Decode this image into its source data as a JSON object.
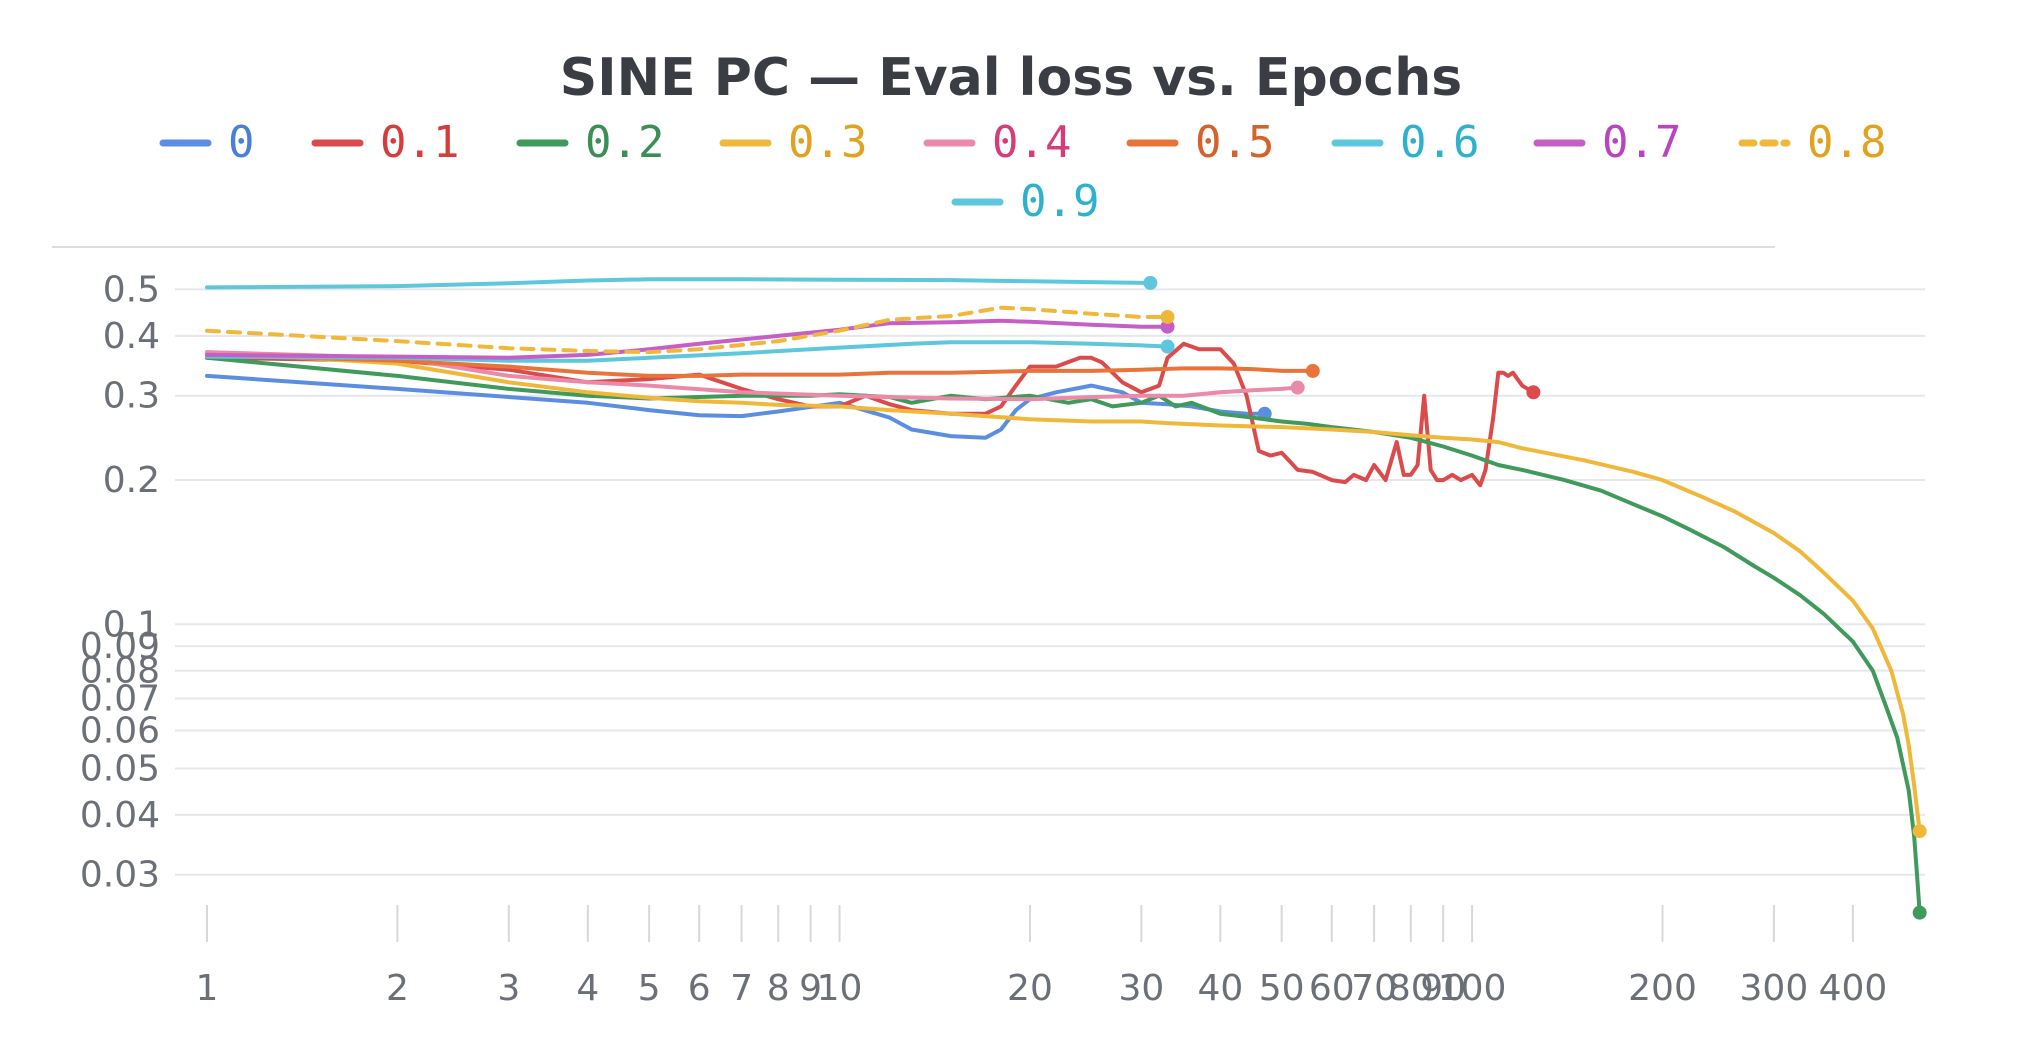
{
  "chart_data": {
    "type": "line",
    "title": "SINE PC — Eval loss vs. Epochs",
    "xlabel": "",
    "ylabel": "",
    "xscale": "log",
    "yscale": "log",
    "xlim": [
      1,
      520
    ],
    "ylim": [
      0.023,
      0.59
    ],
    "grid": "horizontal",
    "legend_position": "top",
    "x_ticks": [
      {
        "value": 1,
        "label": "1"
      },
      {
        "value": 2,
        "label": "2"
      },
      {
        "value": 3,
        "label": "3"
      },
      {
        "value": 4,
        "label": "4"
      },
      {
        "value": 5,
        "label": "5"
      },
      {
        "value": 6,
        "label": "6"
      },
      {
        "value": 7,
        "label": "7"
      },
      {
        "value": 8,
        "label": "8"
      },
      {
        "value": 9,
        "label": "9"
      },
      {
        "value": 10,
        "label": "10"
      },
      {
        "value": 20,
        "label": "20"
      },
      {
        "value": 30,
        "label": "30"
      },
      {
        "value": 40,
        "label": "40"
      },
      {
        "value": 50,
        "label": "50"
      },
      {
        "value": 60,
        "label": "60"
      },
      {
        "value": 70,
        "label": "70"
      },
      {
        "value": 80,
        "label": "80"
      },
      {
        "value": 90,
        "label": "90"
      },
      {
        "value": 100,
        "label": "100"
      },
      {
        "value": 200,
        "label": "200"
      },
      {
        "value": 300,
        "label": "300"
      },
      {
        "value": 400,
        "label": "400"
      }
    ],
    "y_ticks": [
      {
        "value": 0.5,
        "label": "0.5"
      },
      {
        "value": 0.4,
        "label": "0.4"
      },
      {
        "value": 0.3,
        "label": "0.3"
      },
      {
        "value": 0.2,
        "label": "0.2"
      },
      {
        "value": 0.1,
        "label": "0.1"
      },
      {
        "value": 0.09,
        "label": "0.09"
      },
      {
        "value": 0.08,
        "label": "0.08"
      },
      {
        "value": 0.07,
        "label": "0.07"
      },
      {
        "value": 0.06,
        "label": "0.06"
      },
      {
        "value": 0.05,
        "label": "0.05"
      },
      {
        "value": 0.04,
        "label": "0.04"
      },
      {
        "value": 0.03,
        "label": "0.03"
      }
    ],
    "series": [
      {
        "name": "0",
        "color": "#5b8de0",
        "text_color": "#4a7fd6",
        "dashed": false,
        "points": [
          [
            1,
            0.33
          ],
          [
            2,
            0.31
          ],
          [
            4,
            0.29
          ],
          [
            5,
            0.28
          ],
          [
            6,
            0.273
          ],
          [
            7,
            0.272
          ],
          [
            8,
            0.278
          ],
          [
            10,
            0.29
          ],
          [
            12,
            0.27
          ],
          [
            13,
            0.255
          ],
          [
            15,
            0.247
          ],
          [
            17,
            0.245
          ],
          [
            18,
            0.255
          ],
          [
            19,
            0.28
          ],
          [
            20,
            0.295
          ],
          [
            22,
            0.305
          ],
          [
            25,
            0.315
          ],
          [
            28,
            0.305
          ],
          [
            30,
            0.29
          ],
          [
            33,
            0.288
          ],
          [
            36,
            0.285
          ],
          [
            40,
            0.278
          ],
          [
            44,
            0.275
          ],
          [
            47,
            0.275
          ]
        ]
      },
      {
        "name": "0.1",
        "color": "#dc4b4b",
        "text_color": "#d63c3c",
        "dashed": false,
        "points": [
          [
            1,
            0.36
          ],
          [
            2,
            0.355
          ],
          [
            3,
            0.34
          ],
          [
            4,
            0.32
          ],
          [
            5,
            0.325
          ],
          [
            6,
            0.332
          ],
          [
            7,
            0.31
          ],
          [
            8,
            0.295
          ],
          [
            9,
            0.285
          ],
          [
            10,
            0.285
          ],
          [
            11,
            0.3
          ],
          [
            12,
            0.288
          ],
          [
            13,
            0.28
          ],
          [
            15,
            0.275
          ],
          [
            17,
            0.275
          ],
          [
            18,
            0.285
          ],
          [
            19,
            0.315
          ],
          [
            20,
            0.345
          ],
          [
            22,
            0.345
          ],
          [
            24,
            0.36
          ],
          [
            25,
            0.36
          ],
          [
            26,
            0.352
          ],
          [
            28,
            0.32
          ],
          [
            30,
            0.305
          ],
          [
            32,
            0.315
          ],
          [
            33,
            0.36
          ],
          [
            35,
            0.385
          ],
          [
            37,
            0.375
          ],
          [
            40,
            0.375
          ],
          [
            42,
            0.35
          ],
          [
            44,
            0.3
          ],
          [
            46,
            0.23
          ],
          [
            48,
            0.225
          ],
          [
            50,
            0.228
          ],
          [
            53,
            0.21
          ],
          [
            56,
            0.208
          ],
          [
            60,
            0.2
          ],
          [
            63,
            0.198
          ],
          [
            65,
            0.205
          ],
          [
            68,
            0.2
          ],
          [
            70,
            0.215
          ],
          [
            73,
            0.2
          ],
          [
            76,
            0.24
          ],
          [
            78,
            0.205
          ],
          [
            80,
            0.205
          ],
          [
            82,
            0.215
          ],
          [
            84,
            0.3
          ],
          [
            86,
            0.21
          ],
          [
            88,
            0.2
          ],
          [
            90,
            0.2
          ],
          [
            93,
            0.205
          ],
          [
            96,
            0.2
          ],
          [
            100,
            0.205
          ],
          [
            103,
            0.195
          ],
          [
            105,
            0.21
          ],
          [
            108,
            0.27
          ],
          [
            110,
            0.335
          ],
          [
            112,
            0.335
          ],
          [
            114,
            0.33
          ],
          [
            116,
            0.335
          ],
          [
            120,
            0.315
          ],
          [
            125,
            0.305
          ]
        ]
      },
      {
        "name": "0.2",
        "color": "#3f9a5b",
        "text_color": "#3a8f54",
        "dashed": false,
        "points": [
          [
            1,
            0.36
          ],
          [
            2,
            0.33
          ],
          [
            3,
            0.31
          ],
          [
            4,
            0.3
          ],
          [
            5,
            0.296
          ],
          [
            7,
            0.3
          ],
          [
            9,
            0.3
          ],
          [
            10,
            0.302
          ],
          [
            12,
            0.298
          ],
          [
            13,
            0.29
          ],
          [
            15,
            0.3
          ],
          [
            17,
            0.295
          ],
          [
            20,
            0.3
          ],
          [
            23,
            0.29
          ],
          [
            25,
            0.295
          ],
          [
            27,
            0.285
          ],
          [
            30,
            0.29
          ],
          [
            32,
            0.3
          ],
          [
            34,
            0.285
          ],
          [
            36,
            0.29
          ],
          [
            40,
            0.275
          ],
          [
            45,
            0.27
          ],
          [
            50,
            0.265
          ],
          [
            55,
            0.262
          ],
          [
            60,
            0.258
          ],
          [
            70,
            0.252
          ],
          [
            80,
            0.245
          ],
          [
            90,
            0.235
          ],
          [
            100,
            0.225
          ],
          [
            110,
            0.215
          ],
          [
            120,
            0.21
          ],
          [
            140,
            0.2
          ],
          [
            160,
            0.19
          ],
          [
            180,
            0.178
          ],
          [
            200,
            0.168
          ],
          [
            220,
            0.158
          ],
          [
            250,
            0.145
          ],
          [
            280,
            0.132
          ],
          [
            300,
            0.125
          ],
          [
            330,
            0.115
          ],
          [
            360,
            0.105
          ],
          [
            400,
            0.092
          ],
          [
            430,
            0.08
          ],
          [
            450,
            0.068
          ],
          [
            470,
            0.058
          ],
          [
            490,
            0.045
          ],
          [
            500,
            0.036
          ],
          [
            505,
            0.03
          ],
          [
            510,
            0.025
          ]
        ]
      },
      {
        "name": "0.3",
        "color": "#f0b83a",
        "text_color": "#e0a21f",
        "dashed": false,
        "points": [
          [
            1,
            0.37
          ],
          [
            2,
            0.35
          ],
          [
            3,
            0.32
          ],
          [
            4,
            0.305
          ],
          [
            5,
            0.297
          ],
          [
            6,
            0.292
          ],
          [
            7,
            0.29
          ],
          [
            8,
            0.287
          ],
          [
            10,
            0.285
          ],
          [
            12,
            0.28
          ],
          [
            15,
            0.275
          ],
          [
            20,
            0.268
          ],
          [
            25,
            0.265
          ],
          [
            30,
            0.265
          ],
          [
            33,
            0.263
          ],
          [
            40,
            0.26
          ],
          [
            50,
            0.258
          ],
          [
            60,
            0.255
          ],
          [
            70,
            0.252
          ],
          [
            80,
            0.248
          ],
          [
            90,
            0.245
          ],
          [
            100,
            0.243
          ],
          [
            110,
            0.24
          ],
          [
            120,
            0.233
          ],
          [
            150,
            0.22
          ],
          [
            180,
            0.208
          ],
          [
            200,
            0.2
          ],
          [
            230,
            0.185
          ],
          [
            260,
            0.172
          ],
          [
            300,
            0.155
          ],
          [
            330,
            0.142
          ],
          [
            360,
            0.128
          ],
          [
            400,
            0.112
          ],
          [
            430,
            0.098
          ],
          [
            460,
            0.08
          ],
          [
            480,
            0.065
          ],
          [
            490,
            0.056
          ],
          [
            500,
            0.046
          ],
          [
            510,
            0.037
          ]
        ]
      },
      {
        "name": "0.4",
        "color": "#ea8aa8",
        "text_color": "#d63c7a",
        "dashed": false,
        "points": [
          [
            1,
            0.37
          ],
          [
            2,
            0.36
          ],
          [
            3,
            0.33
          ],
          [
            4,
            0.32
          ],
          [
            5,
            0.315
          ],
          [
            7,
            0.305
          ],
          [
            10,
            0.3
          ],
          [
            15,
            0.296
          ],
          [
            20,
            0.295
          ],
          [
            25,
            0.298
          ],
          [
            30,
            0.3
          ],
          [
            35,
            0.3
          ],
          [
            40,
            0.305
          ],
          [
            45,
            0.308
          ],
          [
            50,
            0.31
          ],
          [
            53,
            0.312
          ]
        ]
      },
      {
        "name": "0.5",
        "color": "#e8743b",
        "text_color": "#d4622b",
        "dashed": false,
        "points": [
          [
            1,
            0.365
          ],
          [
            2,
            0.355
          ],
          [
            3,
            0.345
          ],
          [
            4,
            0.335
          ],
          [
            5,
            0.33
          ],
          [
            6,
            0.33
          ],
          [
            7,
            0.332
          ],
          [
            10,
            0.332
          ],
          [
            12,
            0.335
          ],
          [
            15,
            0.335
          ],
          [
            20,
            0.338
          ],
          [
            25,
            0.338
          ],
          [
            30,
            0.34
          ],
          [
            35,
            0.342
          ],
          [
            40,
            0.342
          ],
          [
            45,
            0.341
          ],
          [
            50,
            0.338
          ],
          [
            56,
            0.338
          ]
        ]
      },
      {
        "name": "0.6",
        "color": "#5ec7de",
        "text_color": "#2eb0cf",
        "dashed": false,
        "points": [
          [
            1,
            0.362
          ],
          [
            2,
            0.36
          ],
          [
            3,
            0.355
          ],
          [
            4,
            0.355
          ],
          [
            5,
            0.36
          ],
          [
            7,
            0.368
          ],
          [
            10,
            0.378
          ],
          [
            13,
            0.385
          ],
          [
            15,
            0.388
          ],
          [
            20,
            0.388
          ],
          [
            25,
            0.385
          ],
          [
            30,
            0.382
          ],
          [
            33,
            0.38
          ]
        ]
      },
      {
        "name": "0.7",
        "color": "#c65ec7",
        "text_color": "#b844c0",
        "dashed": false,
        "points": [
          [
            1,
            0.365
          ],
          [
            2,
            0.362
          ],
          [
            3,
            0.36
          ],
          [
            4,
            0.365
          ],
          [
            5,
            0.375
          ],
          [
            6,
            0.385
          ],
          [
            8,
            0.4
          ],
          [
            10,
            0.412
          ],
          [
            12,
            0.425
          ],
          [
            15,
            0.427
          ],
          [
            18,
            0.43
          ],
          [
            20,
            0.428
          ],
          [
            25,
            0.422
          ],
          [
            30,
            0.418
          ],
          [
            33,
            0.418
          ]
        ]
      },
      {
        "name": "0.8",
        "color": "#f0b83a",
        "text_color": "#e0a21f",
        "dashed": true,
        "points": [
          [
            1,
            0.41
          ],
          [
            2,
            0.39
          ],
          [
            3,
            0.377
          ],
          [
            4,
            0.372
          ],
          [
            5,
            0.37
          ],
          [
            6,
            0.375
          ],
          [
            8,
            0.39
          ],
          [
            10,
            0.41
          ],
          [
            12,
            0.432
          ],
          [
            15,
            0.44
          ],
          [
            18,
            0.458
          ],
          [
            20,
            0.455
          ],
          [
            25,
            0.445
          ],
          [
            30,
            0.438
          ],
          [
            33,
            0.438
          ]
        ]
      },
      {
        "name": "0.9",
        "color": "#5ec7de",
        "text_color": "#2eb0cf",
        "dashed": false,
        "points": [
          [
            1,
            0.505
          ],
          [
            2,
            0.508
          ],
          [
            3,
            0.515
          ],
          [
            4,
            0.522
          ],
          [
            5,
            0.525
          ],
          [
            7,
            0.525
          ],
          [
            10,
            0.524
          ],
          [
            15,
            0.523
          ],
          [
            20,
            0.52
          ],
          [
            25,
            0.518
          ],
          [
            31,
            0.516
          ]
        ]
      }
    ]
  }
}
